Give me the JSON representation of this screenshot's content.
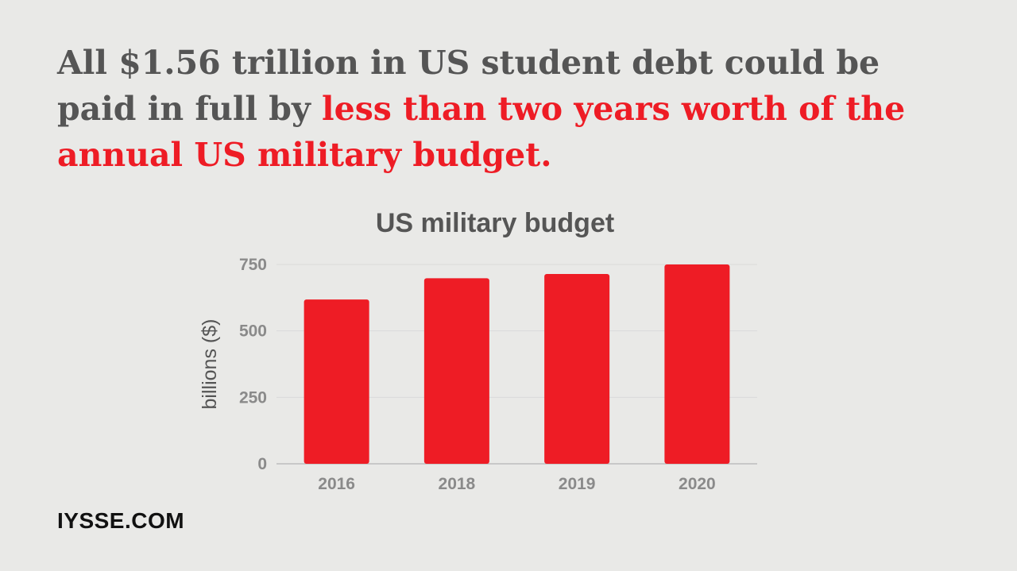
{
  "headline": {
    "part1": "All $1.56 trillion in US student debt could be paid in full by ",
    "accent": "less than two years worth of the annual US military budget."
  },
  "brand": "IYSSE.COM",
  "colors": {
    "bar": "#ee1c25",
    "accent_text": "#ee1c25",
    "text": "#555555",
    "background": "#e9e9e7"
  },
  "chart_data": {
    "type": "bar",
    "title": "US military budget",
    "ylabel": "billions ($)",
    "xlabel": "",
    "categories": [
      "2016",
      "2018",
      "2019",
      "2020"
    ],
    "values": [
      618,
      698,
      714,
      750
    ],
    "ylim": [
      0,
      750
    ],
    "yticks": [
      0,
      250,
      500,
      750
    ],
    "grid": true
  }
}
